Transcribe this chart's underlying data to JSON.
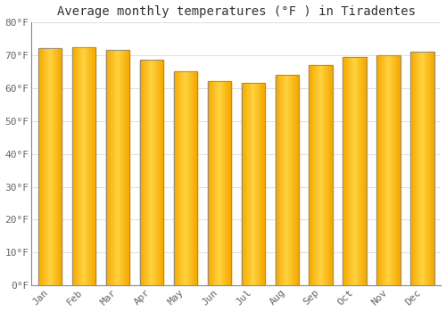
{
  "title": "Average monthly temperatures (°F ) in Tiradentes",
  "months": [
    "Jan",
    "Feb",
    "Mar",
    "Apr",
    "May",
    "Jun",
    "Jul",
    "Aug",
    "Sep",
    "Oct",
    "Nov",
    "Dec"
  ],
  "values": [
    72,
    72.5,
    71.5,
    68.5,
    65,
    62,
    61.5,
    64,
    67,
    69.5,
    70,
    71
  ],
  "ylim": [
    0,
    80
  ],
  "yticks": [
    0,
    10,
    20,
    30,
    40,
    50,
    60,
    70,
    80
  ],
  "ytick_labels": [
    "0°F",
    "10°F",
    "20°F",
    "30°F",
    "40°F",
    "50°F",
    "60°F",
    "70°F",
    "80°F"
  ],
  "bar_color_outer": "#F5A800",
  "bar_color_inner": "#FFD340",
  "bar_edge_color": "#888888",
  "background_color": "#FFFFFF",
  "grid_color": "#DDDDDD",
  "title_fontsize": 10,
  "tick_fontsize": 8,
  "tick_color": "#666666",
  "title_color": "#333333",
  "bar_width": 0.7
}
